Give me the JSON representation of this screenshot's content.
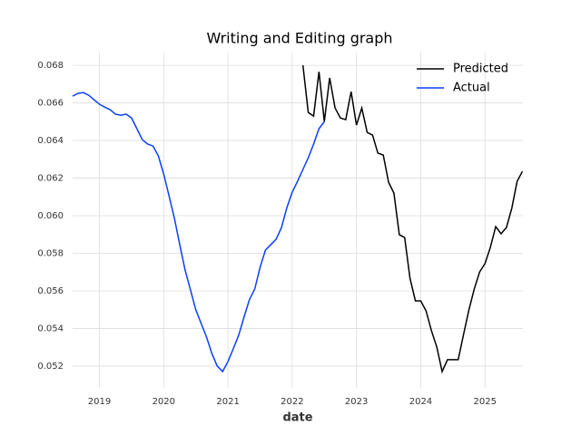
{
  "chart_data": {
    "type": "line",
    "title": "Writing and Editing graph",
    "x_label": "date",
    "xlim": [
      2018.583,
      2025.59
    ],
    "xticks": [
      2019,
      2020,
      2021,
      2022,
      2023,
      2024,
      2025
    ],
    "ylim": [
      0.05084,
      0.06868
    ],
    "yticks": [
      {
        "value": 0.052,
        "label": "0.052"
      },
      {
        "value": 0.054,
        "label": "0.054"
      },
      {
        "value": 0.056,
        "label": "0.056"
      },
      {
        "value": 0.058,
        "label": "0.058"
      },
      {
        "value": 0.06,
        "label": "0.060"
      },
      {
        "value": 0.062,
        "label": "0.062"
      },
      {
        "value": 0.064,
        "label": "0.064"
      },
      {
        "value": 0.066,
        "label": "0.066"
      },
      {
        "value": 0.068,
        "label": "0.068"
      }
    ],
    "grid": true,
    "legend": "upper right",
    "series": [
      {
        "name": "Predicted",
        "color": "#000000",
        "x": [
          2022.167,
          2022.25,
          2022.333,
          2022.417,
          2022.5,
          2022.583,
          2022.667,
          2022.75,
          2022.833,
          2022.917,
          2023,
          2023.083,
          2023.167,
          2023.25,
          2023.333,
          2023.417,
          2023.5,
          2023.583,
          2023.667,
          2023.75,
          2023.833,
          2023.917,
          2024,
          2024.083,
          2024.167,
          2024.25,
          2024.333,
          2024.417,
          2024.5,
          2024.583,
          2024.667,
          2024.75,
          2024.833,
          2024.917,
          2025,
          2025.083,
          2025.167,
          2025.25,
          2025.333,
          2025.417,
          2025.5,
          2025.583
        ],
        "values": [
          0.068,
          0.06549,
          0.0653,
          0.06766,
          0.06501,
          0.06733,
          0.06573,
          0.0652,
          0.06511,
          0.0666,
          0.06482,
          0.06573,
          0.06443,
          0.06429,
          0.06333,
          0.06323,
          0.06178,
          0.0612,
          0.05899,
          0.05884,
          0.05667,
          0.05547,
          0.05547,
          0.05494,
          0.05388,
          0.05301,
          0.05171,
          0.05234,
          0.05234,
          0.05234,
          0.05369,
          0.05499,
          0.0561,
          0.05701,
          0.05745,
          0.05831,
          0.05942,
          0.05904,
          0.05937,
          0.06039,
          0.06183,
          0.06236
        ]
      },
      {
        "name": "Actual",
        "color": "#0a3fff",
        "x": [
          2018.583,
          2018.667,
          2018.75,
          2018.833,
          2018.917,
          2019,
          2019.083,
          2019.167,
          2019.25,
          2019.333,
          2019.417,
          2019.5,
          2019.583,
          2019.667,
          2019.75,
          2019.833,
          2019.917,
          2020,
          2020.083,
          2020.167,
          2020.25,
          2020.333,
          2020.417,
          2020.5,
          2020.583,
          2020.667,
          2020.75,
          2020.833,
          2020.917,
          2021,
          2021.083,
          2021.167,
          2021.25,
          2021.333,
          2021.417,
          2021.5,
          2021.583,
          2021.667,
          2021.75,
          2021.833,
          2021.917,
          2022,
          2022.083,
          2022.167,
          2022.25,
          2022.333,
          2022.417,
          2022.5
        ],
        "values": [
          0.06636,
          0.06651,
          0.06655,
          0.06641,
          0.06617,
          0.06593,
          0.06578,
          0.06564,
          0.0654,
          0.06535,
          0.0654,
          0.0652,
          0.06463,
          0.06405,
          0.06381,
          0.06371,
          0.06318,
          0.06222,
          0.06106,
          0.05986,
          0.05846,
          0.05711,
          0.05605,
          0.05499,
          0.05427,
          0.05354,
          0.05267,
          0.052,
          0.05171,
          0.05224,
          0.05292,
          0.05364,
          0.0546,
          0.05552,
          0.0561,
          0.05725,
          0.05817,
          0.05846,
          0.05875,
          0.05937,
          0.06043,
          0.06125,
          0.06183,
          0.06246,
          0.06308,
          0.06381,
          0.06463,
          0.06501
        ]
      }
    ]
  }
}
